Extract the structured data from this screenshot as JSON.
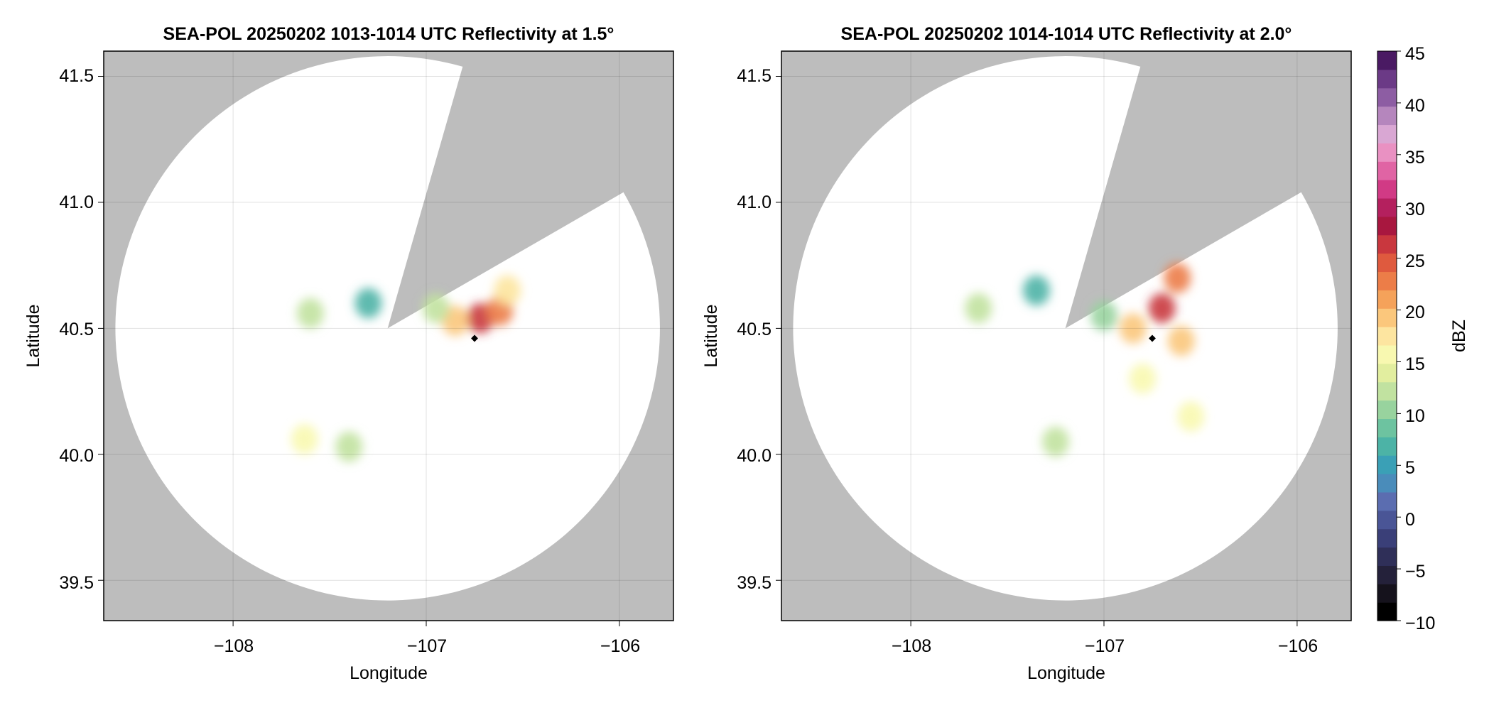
{
  "colorbar": {
    "label": "dBZ",
    "min": -10,
    "max": 45,
    "tick_labels": [
      "45",
      "40",
      "35",
      "30",
      "25",
      "20",
      "15",
      "10",
      "5",
      "0",
      "−5",
      "−10"
    ],
    "tick_values": [
      45,
      40,
      35,
      30,
      25,
      20,
      15,
      10,
      5,
      0,
      -5,
      -10
    ],
    "colors": [
      "#000000",
      "#15121c",
      "#24213a",
      "#2f2f58",
      "#3a3f78",
      "#4a5596",
      "#5b6db0",
      "#4a8cba",
      "#3aa0b6",
      "#4cb3a6",
      "#6dc3a0",
      "#98d39e",
      "#c1e2a0",
      "#e2ee9f",
      "#f8f8b0",
      "#fde5a0",
      "#fbc77c",
      "#f5a25a",
      "#ec7d48",
      "#df5a3e",
      "#c9373e",
      "#a8173f",
      "#b4205e",
      "#d13a85",
      "#e064a4",
      "#e991c2",
      "#d9a7d3",
      "#b586bd",
      "#8d5da3",
      "#6b3a86",
      "#4a1a63"
    ]
  },
  "map_layers": {
    "background_color": "#bdbdbd",
    "coverage_color": "#ffffff",
    "marker_color": "#000000"
  },
  "chart_data": [
    {
      "type": "heatmap",
      "title": "SEA-POL 20250202 1013-1014 UTC Reflectivity at 1.5°",
      "xlabel": "Longitude",
      "ylabel": "Latitude",
      "xlim": [
        -108.67,
        -105.72
      ],
      "ylim": [
        39.34,
        41.6
      ],
      "xticks": [
        -108,
        -107,
        -106
      ],
      "xtick_labels": [
        "−108",
        "−107",
        "−106"
      ],
      "yticks": [
        39.5,
        40.0,
        40.5,
        41.0,
        41.5
      ],
      "ytick_labels": [
        "39.5",
        "40.0",
        "40.5",
        "41.0",
        "41.5"
      ],
      "grid": true,
      "radar_center": [
        -107.2,
        40.5
      ],
      "coverage_radius_deg_lat": 1.08,
      "blocked_sectors_deg_from_north": [
        [
          16,
          60
        ]
      ],
      "marker": {
        "lon": -106.75,
        "lat": 40.46
      },
      "echo_regions": [
        {
          "lon": -106.72,
          "lat": 40.54,
          "dbz": 26
        },
        {
          "lon": -106.62,
          "lat": 40.57,
          "dbz": 22
        },
        {
          "lon": -106.85,
          "lat": 40.53,
          "dbz": 20
        },
        {
          "lon": -106.58,
          "lat": 40.65,
          "dbz": 17
        },
        {
          "lon": -106.95,
          "lat": 40.58,
          "dbz": 12
        },
        {
          "lon": -107.3,
          "lat": 40.6,
          "dbz": 6
        },
        {
          "lon": -107.6,
          "lat": 40.56,
          "dbz": 12
        },
        {
          "lon": -107.4,
          "lat": 40.03,
          "dbz": 12
        },
        {
          "lon": -107.63,
          "lat": 40.06,
          "dbz": 15
        }
      ]
    },
    {
      "type": "heatmap",
      "title": "SEA-POL 20250202 1014-1014 UTC Reflectivity at 2.0°",
      "xlabel": "Longitude",
      "ylabel": "Latitude",
      "xlim": [
        -108.67,
        -105.72
      ],
      "ylim": [
        39.34,
        41.6
      ],
      "xticks": [
        -108,
        -107,
        -106
      ],
      "xtick_labels": [
        "−108",
        "−107",
        "−106"
      ],
      "yticks": [
        39.5,
        40.0,
        40.5,
        41.0,
        41.5
      ],
      "ytick_labels": [
        "39.5",
        "40.0",
        "40.5",
        "41.0",
        "41.5"
      ],
      "grid": true,
      "radar_center": [
        -107.2,
        40.5
      ],
      "coverage_radius_deg_lat": 1.08,
      "blocked_sectors_deg_from_north": [
        [
          16,
          60
        ]
      ],
      "marker": {
        "lon": -106.75,
        "lat": 40.46
      },
      "echo_regions": [
        {
          "lon": -106.7,
          "lat": 40.58,
          "dbz": 27
        },
        {
          "lon": -106.62,
          "lat": 40.7,
          "dbz": 22
        },
        {
          "lon": -106.85,
          "lat": 40.5,
          "dbz": 20
        },
        {
          "lon": -106.6,
          "lat": 40.45,
          "dbz": 20
        },
        {
          "lon": -106.8,
          "lat": 40.3,
          "dbz": 15
        },
        {
          "lon": -106.55,
          "lat": 40.15,
          "dbz": 15
        },
        {
          "lon": -107.0,
          "lat": 40.55,
          "dbz": 10
        },
        {
          "lon": -107.35,
          "lat": 40.65,
          "dbz": 6
        },
        {
          "lon": -107.25,
          "lat": 40.05,
          "dbz": 12
        },
        {
          "lon": -107.65,
          "lat": 40.58,
          "dbz": 12
        }
      ]
    }
  ]
}
